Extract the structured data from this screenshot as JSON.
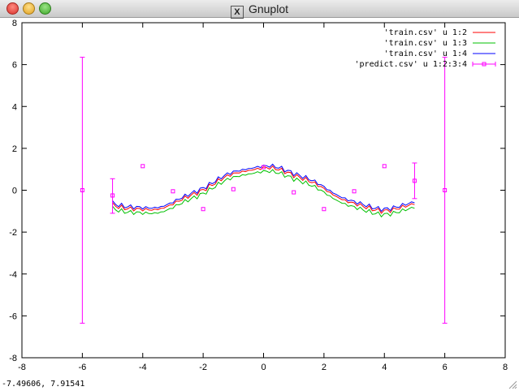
{
  "window": {
    "title": "Gnuplot",
    "coords_readout": "-7.49606,  7.91541"
  },
  "chart_data": {
    "type": "line",
    "xlim": [
      -8,
      8
    ],
    "ylim": [
      -8,
      8
    ],
    "xticks": [
      "-8",
      "-6",
      "-4",
      "-2",
      "0",
      "2",
      "4",
      "6",
      "8"
    ],
    "yticks": [
      "-8",
      "-6",
      "-4",
      "-2",
      "0",
      "2",
      "4",
      "6",
      "8"
    ],
    "grid": false,
    "legend_position": "top-right",
    "series": [
      {
        "name": "'train.csv' u 1:2",
        "color": "#ff0000",
        "offset": 0.05
      },
      {
        "name": "'train.csv' u 1:3",
        "color": "#00c000",
        "offset": -0.12
      },
      {
        "name": "'train.csv' u 1:4",
        "color": "#0000ff",
        "offset": 0.14
      }
    ],
    "train_x_range": [
      -5,
      5
    ],
    "predict": {
      "name": "'predict.csv' u 1:2:3:4",
      "color": "#ff00ff",
      "points": [
        {
          "x": -6.0,
          "y": 0.0,
          "ylow": -6.35,
          "yhigh": 6.35
        },
        {
          "x": -5.0,
          "y": -0.25,
          "ylow": -1.1,
          "yhigh": 0.55
        },
        {
          "x": -4.0,
          "y": 1.15,
          "ylow": 1.15,
          "yhigh": 1.15
        },
        {
          "x": -3.0,
          "y": -0.05,
          "ylow": -0.05,
          "yhigh": -0.05
        },
        {
          "x": -2.0,
          "y": -0.9,
          "ylow": -0.9,
          "yhigh": -0.9
        },
        {
          "x": -1.0,
          "y": 0.05,
          "ylow": 0.05,
          "yhigh": 0.05
        },
        {
          "x": 0.0,
          "y": 1.1,
          "ylow": 1.1,
          "yhigh": 1.1
        },
        {
          "x": 1.0,
          "y": -0.1,
          "ylow": -0.1,
          "yhigh": -0.1
        },
        {
          "x": 2.0,
          "y": -0.9,
          "ylow": -0.9,
          "yhigh": -0.9
        },
        {
          "x": 3.0,
          "y": -0.05,
          "ylow": -0.05,
          "yhigh": -0.05
        },
        {
          "x": 4.0,
          "y": 1.15,
          "ylow": 1.15,
          "yhigh": 1.15
        },
        {
          "x": 5.0,
          "y": 0.45,
          "ylow": -0.4,
          "yhigh": 1.3
        },
        {
          "x": 6.0,
          "y": 0.0,
          "ylow": -6.35,
          "yhigh": 6.35
        }
      ]
    }
  }
}
